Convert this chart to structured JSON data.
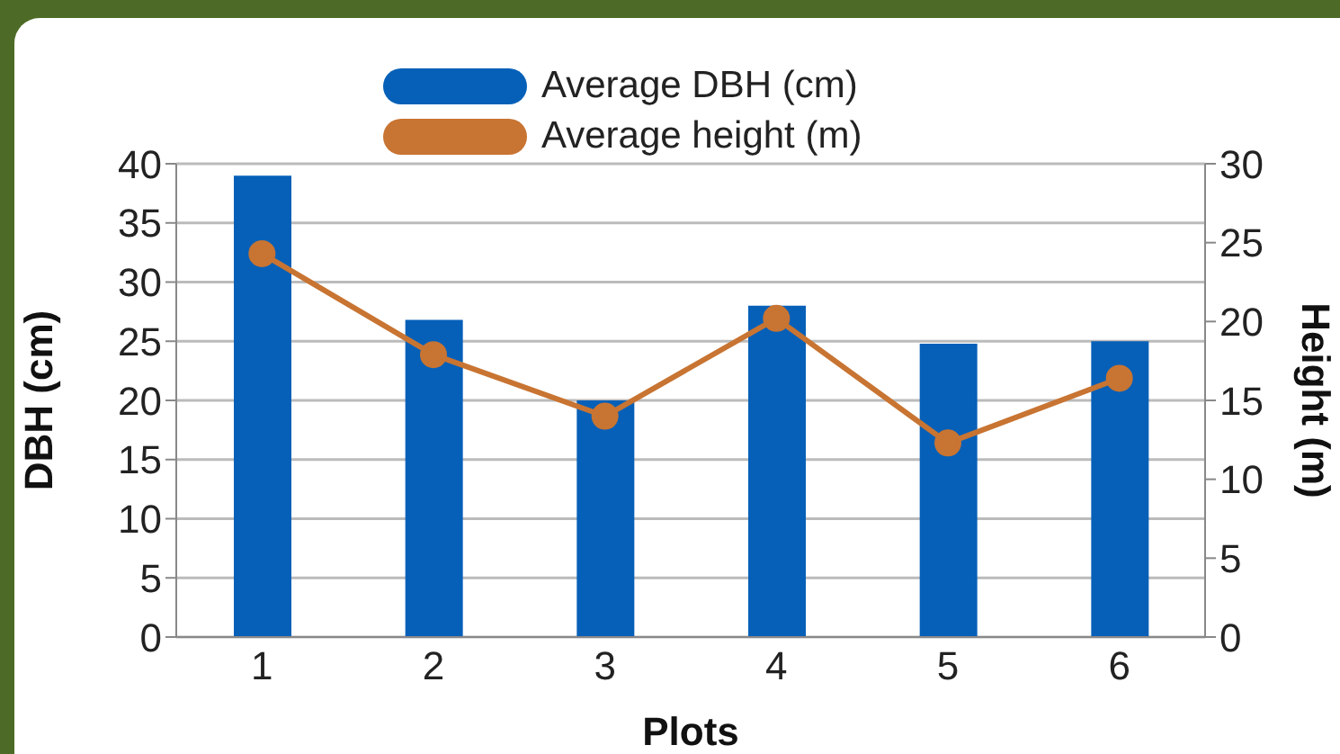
{
  "chart_data": {
    "type": "bar",
    "xlabel": "Plots",
    "ylabel": "DBH (cm)",
    "y2label": "Height (m)",
    "categories": [
      "1",
      "2",
      "3",
      "4",
      "5",
      "6"
    ],
    "series": [
      {
        "name": "Average DBH (cm)",
        "color": "#0660b8",
        "values": [
          39,
          26.8,
          20,
          28,
          24.8,
          25
        ]
      },
      {
        "name": "Average height (m)",
        "type": "line",
        "axis": "y2",
        "color": "#c87432",
        "values": [
          24.3,
          17.9,
          14,
          20.2,
          12.3,
          16.4
        ]
      }
    ],
    "ylim": [
      0,
      40
    ],
    "yticks": [
      0,
      5,
      10,
      15,
      20,
      25,
      30,
      35,
      40
    ],
    "y2lim": [
      0,
      30
    ],
    "y2ticks": [
      0,
      5,
      10,
      15,
      20,
      25,
      30
    ],
    "grid": "y",
    "legend": "top",
    "marker": "circle"
  }
}
